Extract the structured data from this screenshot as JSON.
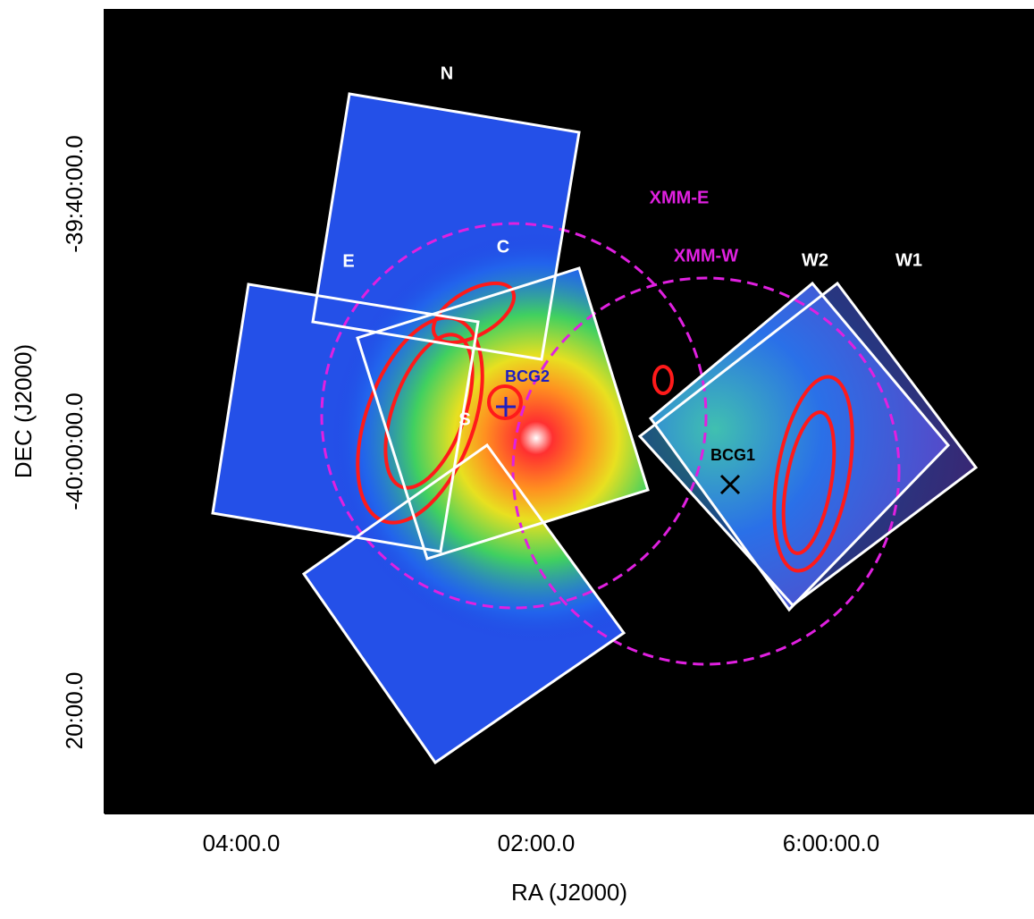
{
  "axes": {
    "x_label": "RA (J2000)",
    "y_label": "DEC (J2000)",
    "x_ticks": [
      "04:00.0",
      "02:00.0",
      "6:00:00.0"
    ],
    "y_ticks": [
      "-39:40:00.0",
      "-40:00:00.0",
      "20:00.0"
    ]
  },
  "regions": {
    "n": "N",
    "e": "E",
    "c": "C",
    "s": "S",
    "w2": "W2",
    "w1": "W1",
    "xmm_e": "XMM-E",
    "xmm_w": "XMM-W",
    "bcg2": "BCG2",
    "bcg1": "BCG1"
  }
}
